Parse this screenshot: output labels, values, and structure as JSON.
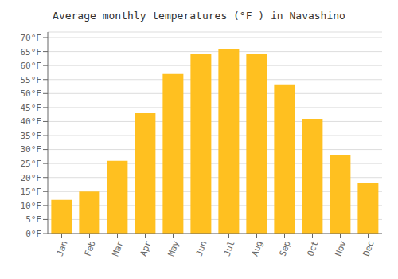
{
  "chart_data": {
    "type": "bar",
    "title": "Average monthly temperatures (°F ) in Navashino",
    "categories": [
      "Jan",
      "Feb",
      "Mar",
      "Apr",
      "May",
      "Jun",
      "Jul",
      "Aug",
      "Sep",
      "Oct",
      "Nov",
      "Dec"
    ],
    "values": [
      12,
      15,
      26,
      43,
      57,
      64,
      66,
      64,
      53,
      41,
      28,
      18
    ],
    "color": "#FFC020",
    "ylim": [
      0,
      72
    ],
    "yticks": [
      {
        "value": 0,
        "label": "0°F"
      },
      {
        "value": 5,
        "label": "5°F"
      },
      {
        "value": 10,
        "label": "10°F"
      },
      {
        "value": 15,
        "label": "15°F"
      },
      {
        "value": 20,
        "label": "20°F"
      },
      {
        "value": 25,
        "label": "25°F"
      },
      {
        "value": 30,
        "label": "30°F"
      },
      {
        "value": 35,
        "label": "35°F"
      },
      {
        "value": 40,
        "label": "40°F"
      },
      {
        "value": 45,
        "label": "45°F"
      },
      {
        "value": 50,
        "label": "50°F"
      },
      {
        "value": 55,
        "label": "55°F"
      },
      {
        "value": 60,
        "label": "60°F"
      },
      {
        "value": 65,
        "label": "65°F"
      },
      {
        "value": 70,
        "label": "70°F"
      }
    ],
    "grid": true
  }
}
